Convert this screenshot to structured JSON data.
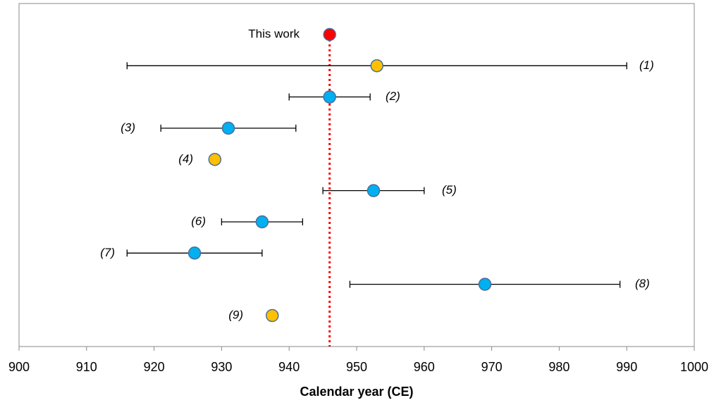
{
  "chart_data": {
    "type": "dot-error",
    "x_label": "Calendar year (CE)",
    "xlim": [
      900,
      1000
    ],
    "xticks": [
      900,
      910,
      920,
      930,
      940,
      950,
      960,
      970,
      980,
      990,
      1000
    ],
    "reference_line": {
      "color": "#ff0000",
      "style": "dotted"
    },
    "points": [
      {
        "label": "This work",
        "value": 946,
        "error": null,
        "color": "#ff0000"
      },
      {
        "label": "(1)",
        "value": 953,
        "error": 37,
        "color": "#ffc000"
      },
      {
        "label": "(2)",
        "value": 946,
        "error": 6,
        "color": "#00b0f0"
      },
      {
        "label": "(3)",
        "value": 931,
        "error": 10,
        "color": "#00b0f0"
      },
      {
        "label": "(4)",
        "value": 929,
        "error": null,
        "color": "#ffc000"
      },
      {
        "label": "(5)",
        "value": 952.5,
        "error": 7.5,
        "color": "#00b0f0"
      },
      {
        "label": "(6)",
        "value": 936,
        "error": 6,
        "color": "#00b0f0"
      },
      {
        "label": "(7)",
        "value": 926,
        "error": 10,
        "color": "#00b0f0"
      },
      {
        "label": "(8)",
        "value": 969,
        "error": 20,
        "color": "#00b0f0"
      },
      {
        "label": "(9)",
        "value": 937.5,
        "error": null,
        "color": "#ffc000"
      }
    ]
  }
}
